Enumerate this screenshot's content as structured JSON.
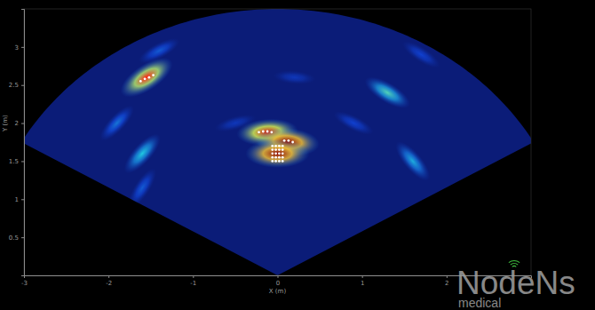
{
  "chart_data": {
    "type": "heatmap",
    "x_label": "X (m)",
    "y_label": "Y (m)",
    "xlim": [
      -3,
      3
    ],
    "ylim": [
      0,
      3.5
    ],
    "xticks": [
      -3,
      -2,
      -1,
      0,
      1,
      2
    ],
    "yticks": [
      0.5,
      1,
      1.5,
      2,
      2.5,
      3
    ],
    "zlim": [
      0,
      1
    ],
    "spots": {
      "x": [
        -0.5,
        0.2,
        0.9,
        1.7,
        -1.4,
        -1.6,
        -1.9,
        1.6,
        -1.6,
        1.3,
        -1.55,
        -0.12,
        0.12,
        0.0
      ],
      "y": [
        2.0,
        2.6,
        2.0,
        2.9,
        2.95,
        1.15,
        2.0,
        1.5,
        1.6,
        2.4,
        2.6,
        1.88,
        1.75,
        1.6
      ],
      "values": [
        0.15,
        0.15,
        0.2,
        0.2,
        0.25,
        0.25,
        0.3,
        0.4,
        0.45,
        0.5,
        0.85,
        0.9,
        1.0,
        1.0
      ]
    },
    "detections": {
      "x": [
        -1.62,
        -1.57,
        -1.52,
        -1.47,
        -0.22,
        -0.17,
        -0.12,
        -0.07,
        -0.06,
        -0.02,
        0.02,
        0.06,
        -0.06,
        -0.02,
        0.02,
        0.06,
        -0.06,
        -0.02,
        0.02,
        0.06,
        -0.06,
        -0.02,
        0.02,
        0.06,
        -0.06,
        -0.02,
        0.02,
        0.06,
        0.08,
        0.13,
        0.18
      ],
      "y": [
        2.55,
        2.58,
        2.6,
        2.63,
        1.88,
        1.89,
        1.89,
        1.88,
        1.5,
        1.5,
        1.5,
        1.5,
        1.55,
        1.55,
        1.55,
        1.55,
        1.6,
        1.6,
        1.6,
        1.6,
        1.65,
        1.65,
        1.65,
        1.65,
        1.7,
        1.7,
        1.7,
        1.7,
        1.77,
        1.77,
        1.75
      ]
    },
    "watermark": [
      "NodeNs",
      "medical"
    ]
  }
}
